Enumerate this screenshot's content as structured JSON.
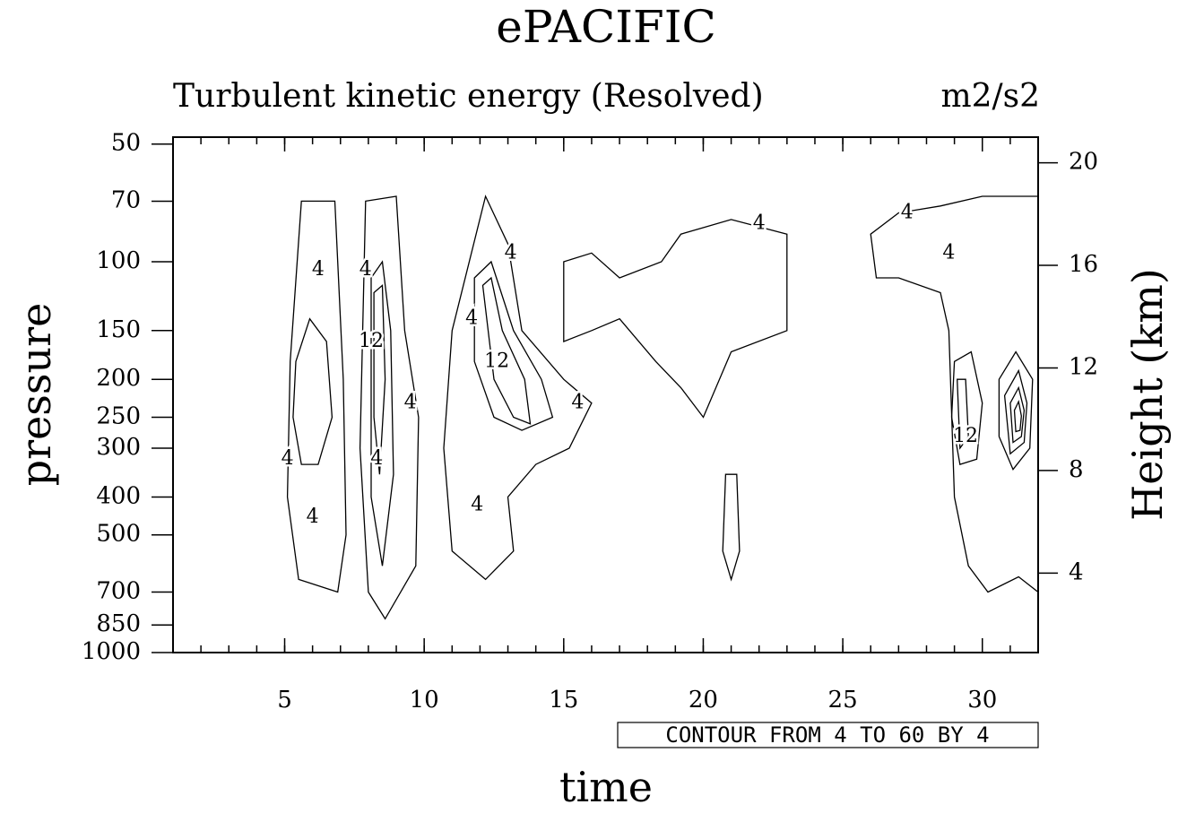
{
  "chart_data": {
    "type": "contour",
    "title": "ePACIFIC",
    "subtitle": "Turbulent kinetic energy (Resolved)",
    "units": "m2/s2",
    "xlabel": "time",
    "ylabel": "pressure",
    "y2label": "Height (km)",
    "annotation": "CONTOUR FROM 4 TO 60 BY 4",
    "xlim": [
      1,
      32
    ],
    "xticks": [
      5,
      10,
      15,
      20,
      25,
      30
    ],
    "xminorstep": 1,
    "ylim": [
      1000,
      48
    ],
    "yscale": "log",
    "yticks": [
      50,
      70,
      100,
      150,
      200,
      250,
      300,
      400,
      500,
      700,
      850,
      1000
    ],
    "y2lim": [
      0.9,
      21
    ],
    "y2ticks": [
      4,
      8,
      12,
      16,
      20
    ],
    "color": "#000000",
    "contours": [
      {
        "time": [
          5.2,
          5.6,
          6.8,
          7.1,
          7.2,
          6.9,
          5.5,
          5.1
        ],
        "pressure": [
          180,
          70,
          70,
          200,
          500,
          700,
          650,
          400
        ]
      },
      {
        "time": [
          7.9,
          9.0,
          9.3,
          9.8,
          9.7,
          8.6,
          8.0,
          7.7
        ],
        "pressure": [
          70,
          68,
          150,
          250,
          600,
          820,
          700,
          300
        ]
      },
      {
        "time": [
          11.0,
          12.2,
          13.0,
          13.5,
          15.0,
          16.0,
          15.2,
          14.0,
          13.0,
          13.2,
          12.2,
          11.0,
          10.7
        ],
        "pressure": [
          150,
          68,
          90,
          150,
          200,
          230,
          300,
          330,
          400,
          550,
          650,
          550,
          300
        ]
      },
      {
        "time": [
          15.0,
          16.0,
          17.0,
          18.5,
          19.2,
          21.0,
          23.0,
          23.0,
          21.0,
          20.0,
          19.2,
          18.3,
          17.0,
          16.0,
          15.0
        ],
        "pressure": [
          100,
          95,
          110,
          100,
          85,
          78,
          85,
          150,
          170,
          250,
          210,
          180,
          140,
          150,
          160
        ]
      },
      {
        "time": [
          26.0,
          27.0,
          28.5,
          30.0,
          32.0,
          32.0,
          31.3,
          30.2,
          29.5,
          29.0,
          28.8,
          28.5,
          27.0,
          26.2
        ],
        "pressure": [
          85,
          75,
          72,
          68,
          68,
          700,
          640,
          700,
          600,
          400,
          150,
          120,
          110,
          110
        ]
      },
      {
        "time": [
          20.8,
          21.2,
          21.3,
          21.0,
          20.7
        ],
        "pressure": [
          350,
          350,
          550,
          650,
          550
        ]
      },
      {
        "time": [
          5.4,
          5.9,
          6.5,
          6.7,
          6.2,
          5.6,
          5.3
        ],
        "pressure": [
          180,
          140,
          160,
          250,
          330,
          330,
          250
        ]
      },
      {
        "time": [
          8.1,
          8.5,
          8.8,
          8.9,
          8.5,
          8.1
        ],
        "pressure": [
          110,
          100,
          150,
          350,
          600,
          400
        ]
      },
      {
        "time": [
          11.8,
          12.4,
          13.2,
          14.2,
          14.6,
          13.5,
          12.5,
          11.8
        ],
        "pressure": [
          110,
          100,
          150,
          200,
          250,
          270,
          250,
          180
        ]
      },
      {
        "time": [
          29.0,
          29.6,
          30.0,
          29.8,
          29.2,
          28.9
        ],
        "pressure": [
          180,
          170,
          230,
          320,
          330,
          250
        ]
      },
      {
        "time": [
          30.6,
          31.2,
          31.8,
          31.7,
          31.1,
          30.6
        ],
        "pressure": [
          200,
          170,
          200,
          300,
          340,
          280
        ]
      },
      {
        "time": [
          8.2,
          8.5,
          8.6,
          8.4,
          8.2
        ],
        "pressure": [
          120,
          115,
          200,
          350,
          250
        ]
      },
      {
        "time": [
          12.1,
          12.4,
          12.8,
          13.6,
          13.8,
          13.2,
          12.5
        ],
        "pressure": [
          115,
          110,
          150,
          200,
          260,
          250,
          200
        ]
      },
      {
        "time": [
          29.1,
          29.4,
          29.5,
          29.2
        ],
        "pressure": [
          200,
          200,
          280,
          300
        ]
      },
      {
        "time": [
          30.8,
          31.3,
          31.6,
          31.5,
          31.0
        ],
        "pressure": [
          220,
          190,
          230,
          290,
          310
        ]
      },
      {
        "time": [
          31.0,
          31.3,
          31.5,
          31.4,
          31.1
        ],
        "pressure": [
          230,
          210,
          240,
          280,
          290
        ]
      },
      {
        "time": [
          31.15,
          31.3,
          31.4,
          31.35,
          31.2
        ],
        "pressure": [
          240,
          228,
          248,
          270,
          272
        ]
      }
    ],
    "contour_labels": [
      {
        "time": 6.2,
        "pressure": 105,
        "value": 4
      },
      {
        "time": 5.1,
        "pressure": 320,
        "value": 4
      },
      {
        "time": 6.0,
        "pressure": 450,
        "value": 4
      },
      {
        "time": 7.9,
        "pressure": 105,
        "value": 4
      },
      {
        "time": 8.1,
        "pressure": 160,
        "value": 12
      },
      {
        "time": 9.5,
        "pressure": 230,
        "value": 4
      },
      {
        "time": 8.3,
        "pressure": 320,
        "value": 4
      },
      {
        "time": 11.7,
        "pressure": 140,
        "value": 4
      },
      {
        "time": 13.1,
        "pressure": 95,
        "value": 4
      },
      {
        "time": 12.6,
        "pressure": 180,
        "value": 12
      },
      {
        "time": 15.5,
        "pressure": 230,
        "value": 4
      },
      {
        "time": 11.9,
        "pressure": 420,
        "value": 4
      },
      {
        "time": 22.0,
        "pressure": 80,
        "value": 4
      },
      {
        "time": 27.3,
        "pressure": 75,
        "value": 4
      },
      {
        "time": 28.8,
        "pressure": 95,
        "value": 4
      },
      {
        "time": 29.4,
        "pressure": 280,
        "value": 12
      }
    ]
  }
}
